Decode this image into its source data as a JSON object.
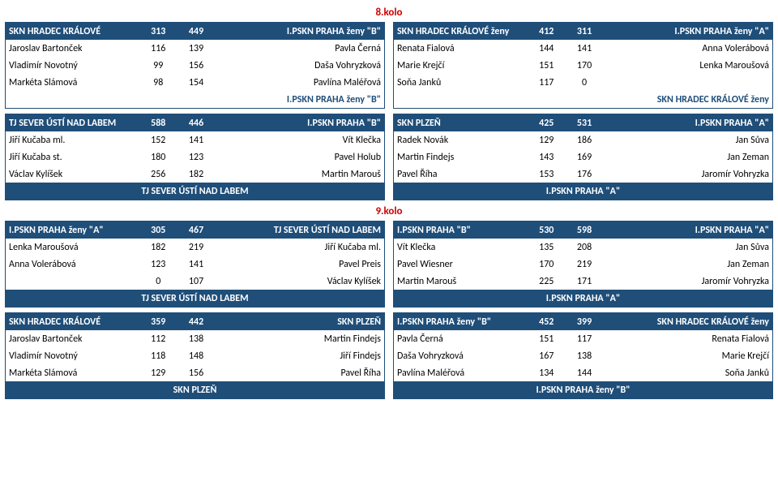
{
  "rounds": [
    {
      "title": "8.kolo",
      "rows": [
        {
          "left": {
            "header": {
              "team1": "SKN HRADEC KRÁLOVÉ",
              "s1": "313",
              "s2": "449",
              "team2": "I.PSKN PRAHA ženy \"B\""
            },
            "body": [
              {
                "p1": "Jaroslav Bartonček",
                "s1": "116",
                "s2": "139",
                "p2": "Pavla Černá"
              },
              {
                "p1": "Vladimír Novotný",
                "s1": "99",
                "s2": "156",
                "p2": "Daša Vohryzková"
              },
              {
                "p1": "Markéta Slámová",
                "s1": "98",
                "s2": "154",
                "p2": "Pavlína Maléřová"
              }
            ],
            "subfooter": {
              "l": "",
              "r": "I.PSKN PRAHA ženy \"B\""
            },
            "footer": ""
          },
          "right": {
            "header": {
              "team1": "SKN HRADEC KRÁLOVÉ ženy",
              "s1": "412",
              "s2": "311",
              "team2": "I.PSKN PRAHA ženy \"A\""
            },
            "body": [
              {
                "p1": "Renata Fialová",
                "s1": "144",
                "s2": "141",
                "p2": "Anna Volerábová"
              },
              {
                "p1": "Marie Krejčí",
                "s1": "151",
                "s2": "170",
                "p2": "Lenka Maroušová"
              },
              {
                "p1": "Soňa Janků",
                "s1": "117",
                "s2": "0",
                "p2": ""
              }
            ],
            "subfooter": {
              "l": "",
              "r": "SKN HRADEC KRÁLOVÉ ženy"
            },
            "footer": ""
          }
        },
        {
          "left": {
            "header": {
              "team1": "TJ SEVER ÚSTÍ NAD LABEM",
              "s1": "588",
              "s2": "446",
              "team2": "I.PSKN PRAHA \"B\""
            },
            "body": [
              {
                "p1": "Jiří Kučaba ml.",
                "s1": "152",
                "s2": "141",
                "p2": "Vít Klečka"
              },
              {
                "p1": "Jiří Kučaba st.",
                "s1": "180",
                "s2": "123",
                "p2": "Pavel Holub"
              },
              {
                "p1": "Václav Kylíšek",
                "s1": "256",
                "s2": "182",
                "p2": "Martin Marouš"
              }
            ],
            "subfooter": null,
            "footer": "TJ SEVER ÚSTÍ NAD LABEM"
          },
          "right": {
            "header": {
              "team1": "SKN PLZEŇ",
              "s1": "425",
              "s2": "531",
              "team2": "I.PSKN PRAHA \"A\""
            },
            "body": [
              {
                "p1": "Radek Novák",
                "s1": "129",
                "s2": "186",
                "p2": "Jan Sůva"
              },
              {
                "p1": "Martin Findejs",
                "s1": "143",
                "s2": "169",
                "p2": "Jan Zeman"
              },
              {
                "p1": "Pavel Říha",
                "s1": "153",
                "s2": "176",
                "p2": "Jaromír Vohryzka"
              }
            ],
            "subfooter": null,
            "footer": "I.PSKN PRAHA \"A\""
          }
        }
      ]
    },
    {
      "title": "9.kolo",
      "rows": [
        {
          "left": {
            "header": {
              "team1": "I.PSKN PRAHA ženy \"A\"",
              "s1": "305",
              "s2": "467",
              "team2": "TJ SEVER ÚSTÍ NAD LABEM"
            },
            "body": [
              {
                "p1": "Lenka Maroušová",
                "s1": "182",
                "s2": "219",
                "p2": "Jiří Kučaba ml."
              },
              {
                "p1": "Anna Volerábová",
                "s1": "123",
                "s2": "141",
                "p2": "Pavel Preis"
              },
              {
                "p1": "",
                "s1": "0",
                "s2": "107",
                "p2": "Václav Kylíšek"
              }
            ],
            "subfooter": null,
            "footer": "TJ SEVER ÚSTÍ NAD LABEM"
          },
          "right": {
            "header": {
              "team1": "I.PSKN PRAHA \"B\"",
              "s1": "530",
              "s2": "598",
              "team2": "I.PSKN PRAHA \"A\""
            },
            "body": [
              {
                "p1": "Vít Klečka",
                "s1": "135",
                "s2": "208",
                "p2": "Jan Sůva"
              },
              {
                "p1": "Pavel Wiesner",
                "s1": "170",
                "s2": "219",
                "p2": "Jan Zeman"
              },
              {
                "p1": "Martin Marouš",
                "s1": "225",
                "s2": "171",
                "p2": "Jaromír Vohryzka"
              }
            ],
            "subfooter": null,
            "footer": "I.PSKN PRAHA \"A\""
          }
        },
        {
          "left": {
            "header": {
              "team1": "SKN HRADEC KRÁLOVÉ",
              "s1": "359",
              "s2": "442",
              "team2": "SKN PLZEŇ"
            },
            "body": [
              {
                "p1": "Jaroslav Bartonček",
                "s1": "112",
                "s2": "138",
                "p2": "Martin Findejs"
              },
              {
                "p1": "Vladimír Novotný",
                "s1": "118",
                "s2": "148",
                "p2": "Jiří Findejs"
              },
              {
                "p1": "Markéta Slámová",
                "s1": "129",
                "s2": "156",
                "p2": "Pavel Říha"
              }
            ],
            "subfooter": null,
            "footer": "SKN PLZEŇ"
          },
          "right": {
            "header": {
              "team1": "I.PSKN PRAHA ženy \"B\"",
              "s1": "452",
              "s2": "399",
              "team2": "SKN HRADEC KRÁLOVÉ ženy"
            },
            "body": [
              {
                "p1": "Pavla Černá",
                "s1": "151",
                "s2": "117",
                "p2": "Renata Fialová"
              },
              {
                "p1": "Daša Vohryzková",
                "s1": "167",
                "s2": "138",
                "p2": "Marie Krejčí"
              },
              {
                "p1": "Pavlína Maléřová",
                "s1": "134",
                "s2": "144",
                "p2": "Soňa Janků"
              }
            ],
            "subfooter": null,
            "footer": "I.PSKN PRAHA ženy \"B\""
          }
        }
      ]
    }
  ]
}
